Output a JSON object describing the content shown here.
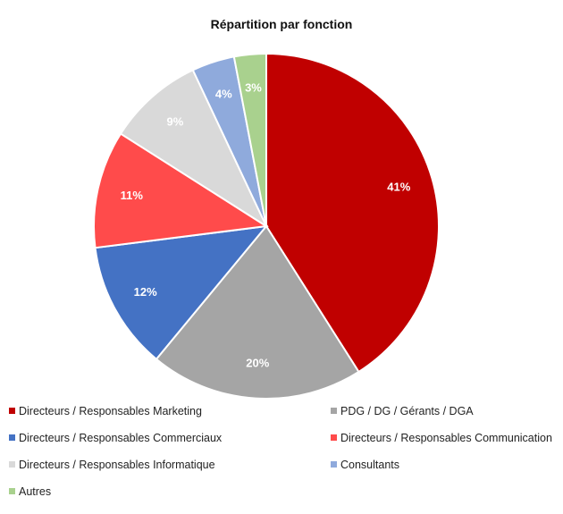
{
  "chart_data": {
    "type": "pie",
    "title": "Répartition par fonction",
    "slices": [
      {
        "name": "Directeurs / Responsables Marketing",
        "value": 41,
        "label": "41%",
        "color": "#c00000"
      },
      {
        "name": "PDG / DG / Gérants / DGA",
        "value": 20,
        "label": "20%",
        "color": "#a5a5a5"
      },
      {
        "name": "Directeurs / Responsables Commerciaux",
        "value": 12,
        "label": "12%",
        "color": "#4472c4"
      },
      {
        "name": "Directeurs / Responsables Communication",
        "value": 11,
        "label": "11%",
        "color": "#ff4b4b"
      },
      {
        "name": "Directeurs / Responsables Informatique",
        "value": 9,
        "label": "9%",
        "color": "#d9d9d9"
      },
      {
        "name": "Consultants",
        "value": 4,
        "label": "4%",
        "color": "#8faadc"
      },
      {
        "name": "Autres",
        "value": 3,
        "label": "3%",
        "color": "#a9d18e"
      }
    ],
    "legend_position": "bottom"
  }
}
